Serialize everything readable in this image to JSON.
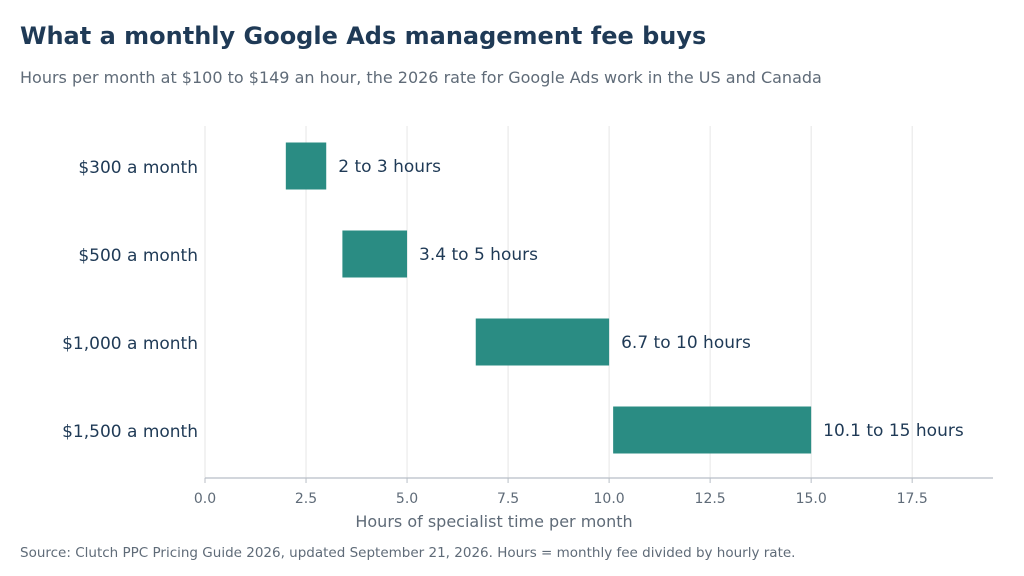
{
  "title": "What a monthly Google Ads management fee buys",
  "subtitle": "Hours per month at $100 to $149 an hour, the 2026 rate for Google Ads work in the US and Canada",
  "source": "Source: Clutch PPC Pricing Guide 2026, updated September 21, 2026. Hours = monthly fee divided by hourly rate.",
  "colors": {
    "bar": "#2a8c83",
    "grid": "#e6e6e6",
    "axis": "#b8bec6"
  },
  "chart_data": {
    "type": "bar",
    "orientation": "horizontal-floating",
    "title": "What a monthly Google Ads management fee buys",
    "subtitle": "Hours per month at $100 to $149 an hour, the 2026 rate for Google Ads work in the US and Canada",
    "xlabel": "Hours of specialist time per month",
    "ylabel": "",
    "xlim": [
      0,
      19.5
    ],
    "xticks": [
      0.0,
      2.5,
      5.0,
      7.5,
      10.0,
      12.5,
      15.0,
      17.5
    ],
    "xtick_labels": [
      "0.0",
      "2.5",
      "5.0",
      "7.5",
      "10.0",
      "12.5",
      "15.0",
      "17.5"
    ],
    "grid": "vertical",
    "categories": [
      "$300 a month",
      "$500 a month",
      "$1,000 a month",
      "$1,500 a month"
    ],
    "ranges": [
      {
        "low": 2.0,
        "high": 3.0
      },
      {
        "low": 3.4,
        "high": 5.0
      },
      {
        "low": 6.7,
        "high": 10.0
      },
      {
        "low": 10.1,
        "high": 15.0
      }
    ],
    "data_labels": [
      "2 to 3 hours",
      "3.4 to 5 hours",
      "6.7 to 10 hours",
      "10.1 to 15 hours"
    ]
  }
}
